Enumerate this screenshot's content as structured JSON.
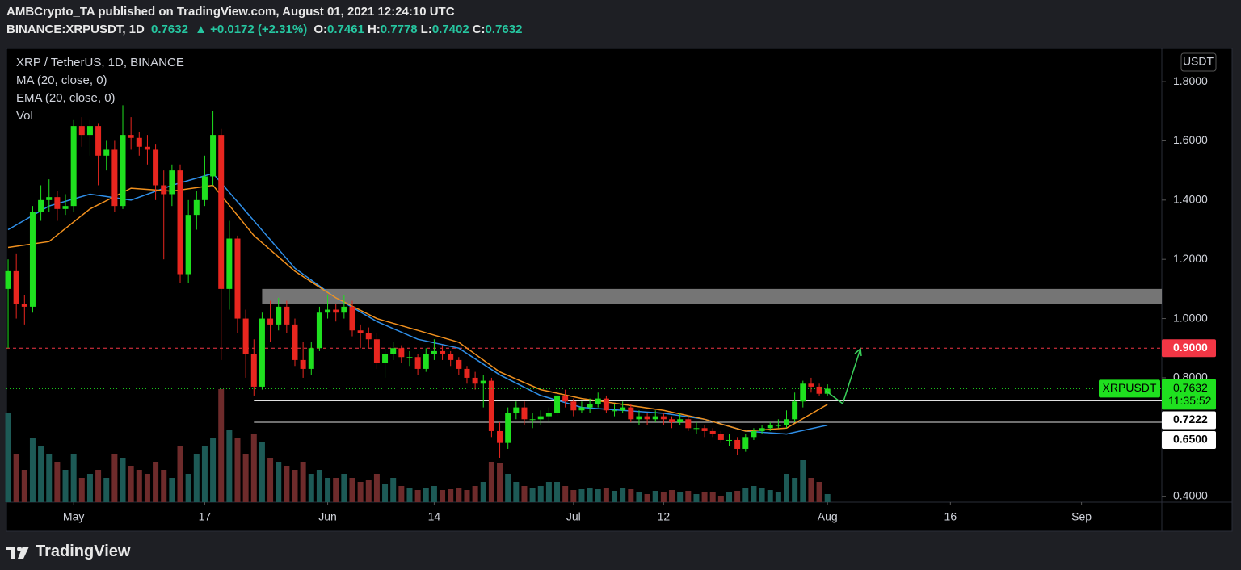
{
  "header": {
    "publisher_line": "AMBCrypto_TA published on TradingView.com, August 01, 2021 12:24:10 UTC",
    "symbol": "BINANCE:XRPUSDT, 1D",
    "last": "0.7632",
    "change": "▲ +0.0172 (+2.31%)",
    "ohlc": [
      {
        "label": "O:",
        "value": "0.7461"
      },
      {
        "label": "H:",
        "value": "0.7778"
      },
      {
        "label": "L:",
        "value": "0.7402"
      },
      {
        "label": "C:",
        "value": "0.7632"
      }
    ]
  },
  "footer": {
    "brand": "TradingView"
  },
  "chart_data": {
    "type": "candlestick",
    "title": "XRP / TetherUS, 1D, BINANCE",
    "volume_name": "Vol",
    "currency": "USDT",
    "up_color": "#1fe01f",
    "down_color": "#e8261f",
    "up_volume_color": "#1d5a56",
    "down_volume_color": "#6e2b2b",
    "xlim": [
      -0.2,
      140.8
    ],
    "ylim": [
      0.38,
      1.912
    ],
    "grid": false,
    "xticks": [
      {
        "value": 8,
        "label": "May"
      },
      {
        "value": 24,
        "label": "17"
      },
      {
        "value": 39,
        "label": "Jun"
      },
      {
        "value": 52,
        "label": "14"
      },
      {
        "value": 69,
        "label": "Jul"
      },
      {
        "value": 80,
        "label": "12"
      },
      {
        "value": 100,
        "label": "Aug"
      },
      {
        "value": 115,
        "label": "16"
      },
      {
        "value": 131,
        "label": "Sep"
      }
    ],
    "yticks": [
      {
        "value": 0.4,
        "label": "0.4000"
      },
      {
        "value": 0.8,
        "label": "0.8000"
      },
      {
        "value": 1.0,
        "label": "1.0000"
      },
      {
        "value": 1.2,
        "label": "1.2000"
      },
      {
        "value": 1.4,
        "label": "1.4000"
      },
      {
        "value": 1.6,
        "label": "1.6000"
      },
      {
        "value": 1.8,
        "label": "1.8000"
      }
    ],
    "x": [
      0,
      1,
      2,
      3,
      4,
      5,
      6,
      7,
      8,
      9,
      10,
      11,
      12,
      13,
      14,
      15,
      16,
      17,
      18,
      19,
      20,
      21,
      22,
      23,
      24,
      25,
      26,
      27,
      28,
      29,
      30,
      31,
      32,
      33,
      34,
      35,
      36,
      37,
      38,
      39,
      40,
      41,
      42,
      43,
      44,
      45,
      46,
      47,
      48,
      49,
      50,
      51,
      52,
      53,
      54,
      55,
      56,
      57,
      58,
      59,
      60,
      61,
      62,
      63,
      64,
      65,
      66,
      67,
      68,
      69,
      70,
      71,
      72,
      73,
      74,
      75,
      76,
      77,
      78,
      79,
      80,
      81,
      82,
      83,
      84,
      85,
      86,
      87,
      88,
      89,
      90,
      91,
      92,
      93,
      94,
      95,
      96,
      97,
      98,
      99,
      100
    ],
    "open": [
      1.1,
      1.16,
      1.05,
      1.04,
      1.36,
      1.4,
      1.41,
      1.37,
      1.38,
      1.65,
      1.62,
      1.65,
      1.55,
      1.57,
      1.38,
      1.62,
      1.61,
      1.58,
      1.57,
      1.45,
      1.42,
      1.5,
      1.15,
      1.35,
      1.4,
      1.48,
      1.62,
      1.1,
      1.27,
      1.0,
      0.88,
      0.77,
      1.0,
      0.98,
      1.04,
      0.98,
      0.86,
      0.83,
      0.9,
      1.02,
      1.03,
      1.02,
      1.04,
      0.96,
      0.95,
      0.93,
      0.85,
      0.88,
      0.9,
      0.87,
      0.87,
      0.83,
      0.88,
      0.89,
      0.88,
      0.86,
      0.83,
      0.8,
      0.78,
      0.79,
      0.62,
      0.58,
      0.68,
      0.7,
      0.66,
      0.66,
      0.67,
      0.68,
      0.74,
      0.72,
      0.69,
      0.7,
      0.71,
      0.73,
      0.69,
      0.69,
      0.7,
      0.66,
      0.67,
      0.66,
      0.67,
      0.66,
      0.65,
      0.66,
      0.63,
      0.63,
      0.62,
      0.61,
      0.59,
      0.59,
      0.56,
      0.6,
      0.62,
      0.63,
      0.64,
      0.64,
      0.66,
      0.72,
      0.78,
      0.77,
      0.7461
    ],
    "high": [
      1.2,
      1.22,
      1.08,
      1.38,
      1.45,
      1.47,
      1.43,
      1.42,
      1.67,
      1.68,
      1.67,
      1.66,
      1.6,
      1.6,
      1.72,
      1.68,
      1.63,
      1.62,
      1.59,
      1.5,
      1.52,
      1.52,
      1.4,
      1.43,
      1.55,
      1.7,
      1.64,
      1.33,
      1.28,
      1.03,
      0.93,
      1.02,
      1.06,
      1.07,
      1.06,
      1.0,
      0.92,
      0.92,
      1.04,
      1.08,
      1.05,
      1.08,
      1.06,
      0.98,
      0.97,
      0.95,
      0.9,
      0.92,
      0.91,
      0.89,
      0.88,
      0.9,
      0.93,
      0.91,
      0.89,
      0.87,
      0.84,
      0.82,
      0.81,
      0.8,
      0.65,
      0.7,
      0.72,
      0.72,
      0.68,
      0.69,
      0.7,
      0.76,
      0.76,
      0.73,
      0.72,
      0.73,
      0.75,
      0.74,
      0.71,
      0.72,
      0.71,
      0.69,
      0.68,
      0.69,
      0.68,
      0.67,
      0.68,
      0.67,
      0.65,
      0.64,
      0.63,
      0.62,
      0.61,
      0.6,
      0.61,
      0.63,
      0.64,
      0.65,
      0.66,
      0.69,
      0.75,
      0.79,
      0.8,
      0.78,
      0.7778
    ],
    "low": [
      0.9,
      1.0,
      0.98,
      1.02,
      1.33,
      1.36,
      1.33,
      1.35,
      1.36,
      1.58,
      1.55,
      1.45,
      1.5,
      1.36,
      1.37,
      1.57,
      1.55,
      1.52,
      1.4,
      1.2,
      1.38,
      1.12,
      1.12,
      1.3,
      1.38,
      1.45,
      0.86,
      1.03,
      0.95,
      0.8,
      0.74,
      0.76,
      0.92,
      0.96,
      0.95,
      0.84,
      0.8,
      0.81,
      0.89,
      1.0,
      0.99,
      1.0,
      0.94,
      0.9,
      0.9,
      0.83,
      0.8,
      0.86,
      0.85,
      0.84,
      0.81,
      0.82,
      0.86,
      0.86,
      0.84,
      0.81,
      0.78,
      0.76,
      0.7,
      0.6,
      0.53,
      0.56,
      0.66,
      0.64,
      0.63,
      0.64,
      0.65,
      0.67,
      0.7,
      0.67,
      0.68,
      0.68,
      0.7,
      0.68,
      0.67,
      0.68,
      0.65,
      0.64,
      0.64,
      0.65,
      0.64,
      0.63,
      0.64,
      0.62,
      0.61,
      0.6,
      0.6,
      0.58,
      0.57,
      0.54,
      0.55,
      0.59,
      0.61,
      0.62,
      0.63,
      0.63,
      0.65,
      0.7,
      0.75,
      0.74,
      0.7402
    ],
    "close": [
      1.16,
      1.05,
      1.04,
      1.36,
      1.4,
      1.41,
      1.37,
      1.38,
      1.65,
      1.62,
      1.65,
      1.55,
      1.57,
      1.38,
      1.62,
      1.61,
      1.58,
      1.57,
      1.45,
      1.42,
      1.5,
      1.15,
      1.35,
      1.4,
      1.48,
      1.62,
      1.1,
      1.27,
      1.0,
      0.88,
      0.77,
      1.0,
      0.98,
      1.04,
      0.98,
      0.86,
      0.83,
      0.9,
      1.02,
      1.03,
      1.02,
      1.04,
      0.96,
      0.95,
      0.93,
      0.85,
      0.88,
      0.9,
      0.87,
      0.87,
      0.83,
      0.88,
      0.89,
      0.88,
      0.86,
      0.83,
      0.8,
      0.78,
      0.79,
      0.62,
      0.58,
      0.68,
      0.7,
      0.66,
      0.66,
      0.67,
      0.68,
      0.74,
      0.72,
      0.69,
      0.7,
      0.71,
      0.73,
      0.69,
      0.69,
      0.7,
      0.66,
      0.67,
      0.66,
      0.67,
      0.66,
      0.65,
      0.66,
      0.63,
      0.63,
      0.62,
      0.61,
      0.59,
      0.59,
      0.56,
      0.6,
      0.62,
      0.63,
      0.64,
      0.64,
      0.66,
      0.72,
      0.78,
      0.77,
      0.746,
      0.7632
    ],
    "volume": [
      110,
      60,
      40,
      80,
      70,
      60,
      50,
      40,
      60,
      30,
      35,
      40,
      30,
      60,
      55,
      45,
      40,
      35,
      50,
      40,
      30,
      70,
      35,
      60,
      70,
      80,
      140,
      90,
      80,
      60,
      85,
      75,
      55,
      50,
      45,
      40,
      50,
      35,
      40,
      30,
      30,
      35,
      30,
      25,
      28,
      35,
      22,
      30,
      20,
      18,
      15,
      18,
      20,
      15,
      16,
      18,
      15,
      20,
      25,
      50,
      48,
      35,
      25,
      20,
      18,
      20,
      25,
      25,
      20,
      15,
      16,
      18,
      16,
      18,
      14,
      18,
      16,
      12,
      10,
      14,
      12,
      15,
      12,
      14,
      10,
      12,
      12,
      8,
      12,
      14,
      18,
      20,
      18,
      15,
      12,
      35,
      30,
      52,
      30,
      25,
      10
    ],
    "series": [
      {
        "name": "MA (20, close, 0)",
        "color": "#2f8fe8",
        "x": [
          0,
          5,
          10,
          15,
          20,
          25,
          30,
          35,
          40,
          45,
          50,
          55,
          60,
          65,
          70,
          75,
          80,
          85,
          90,
          95,
          100
        ],
        "values": [
          1.3,
          1.38,
          1.42,
          1.4,
          1.45,
          1.49,
          1.33,
          1.17,
          1.07,
          0.99,
          0.93,
          0.9,
          0.81,
          0.74,
          0.7,
          0.69,
          0.68,
          0.66,
          0.62,
          0.61,
          0.64
        ]
      },
      {
        "name": "EMA (20, close, 0)",
        "color": "#f0901e",
        "x": [
          0,
          5,
          10,
          15,
          20,
          25,
          30,
          35,
          40,
          45,
          50,
          55,
          60,
          65,
          70,
          75,
          80,
          85,
          90,
          95,
          100
        ],
        "values": [
          1.24,
          1.26,
          1.37,
          1.44,
          1.43,
          1.45,
          1.28,
          1.16,
          1.07,
          1.0,
          0.96,
          0.92,
          0.82,
          0.76,
          0.73,
          0.71,
          0.69,
          0.66,
          0.62,
          0.63,
          0.71
        ]
      }
    ],
    "zone": {
      "from": 1.05,
      "to": 1.1,
      "start": 31
    },
    "levels": [
      {
        "value": 0.9,
        "label": "0.9000",
        "color": "#f23645",
        "style": "dashed"
      },
      {
        "value": 0.7222,
        "label": "0.7222",
        "color": "#e0e0e0",
        "style": "solid",
        "start": 30
      },
      {
        "value": 0.65,
        "label": "0.6500",
        "color": "#e0e0e0",
        "style": "solid",
        "start": 30
      }
    ],
    "price_label": {
      "symbol": "XRPUSDT",
      "price": "0.7632",
      "countdown": "11:35:52",
      "color": "#1fe01f"
    }
  }
}
